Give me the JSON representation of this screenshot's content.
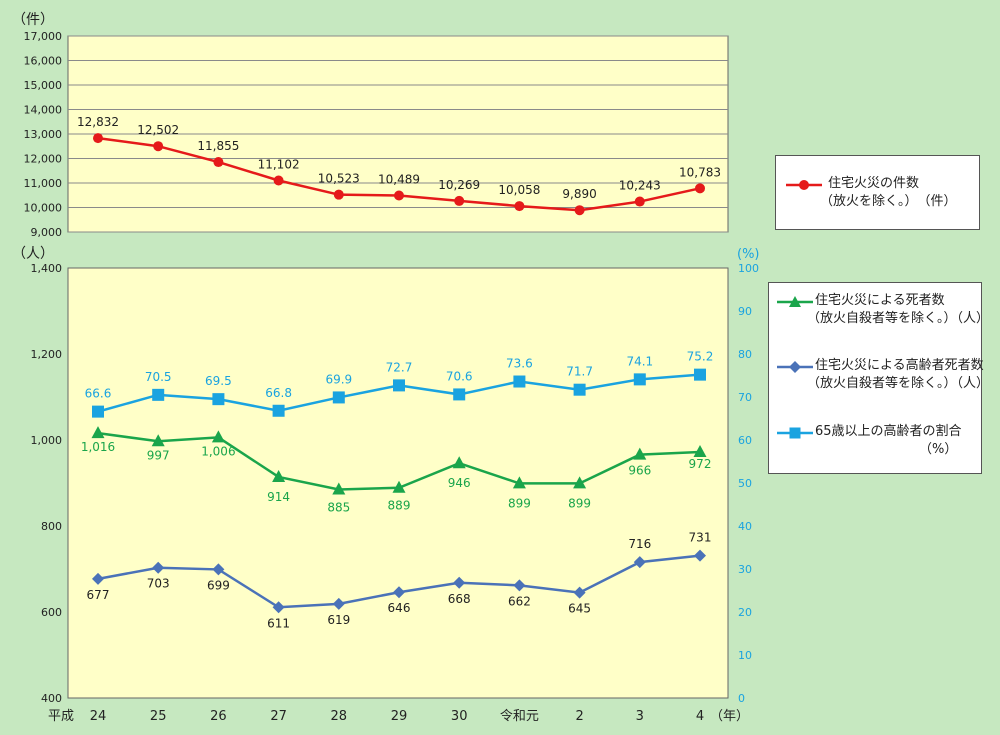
{
  "chart_data": [
    {
      "type": "line",
      "y_unit": "（件）",
      "ylim": [
        9000,
        17000
      ],
      "yticks": [
        "9,000",
        "10,000",
        "11,000",
        "12,000",
        "13,000",
        "14,000",
        "15,000",
        "16,000",
        "17,000"
      ],
      "categories": [
        "平成 24",
        "25",
        "26",
        "27",
        "28",
        "29",
        "30",
        "令和元",
        "2",
        "3",
        "4"
      ],
      "series": [
        {
          "name": "住宅火災の件数（放火を除く。）（件）",
          "legend_lines": [
            "住宅火災の件数",
            "（放火を除く。）　（件）"
          ],
          "color": "#e51a1a",
          "marker": "circle",
          "values": [
            12832,
            12502,
            11855,
            11102,
            10523,
            10489,
            10269,
            10058,
            9890,
            10243,
            10783
          ],
          "labels": [
            "12,832",
            "12,502",
            "11,855",
            "11,102",
            "10,523",
            "10,489",
            "10,269",
            "10,058",
            "9,890",
            "10,243",
            "10,783"
          ]
        }
      ]
    },
    {
      "type": "line",
      "y_unit_left": "（人）",
      "y_unit_right": "(%)",
      "ylim_left": [
        400,
        1400
      ],
      "ylim_right": [
        0,
        100
      ],
      "yticks_left": [
        "400",
        "600",
        "800",
        "1,000",
        "1,200",
        "1,400"
      ],
      "yticks_right": [
        "0",
        "10",
        "20",
        "30",
        "40",
        "50",
        "60",
        "70",
        "80",
        "90",
        "100"
      ],
      "x_era_label": "平成",
      "x_unit": "（年）",
      "categories": [
        "24",
        "25",
        "26",
        "27",
        "28",
        "29",
        "30",
        "令和元",
        "2",
        "3",
        "4"
      ],
      "series": [
        {
          "name": "住宅火災による死者数（放火自殺者等を除く。）（人）",
          "legend_lines": [
            "住宅火災による死者数",
            "（放火自殺者等を除く。）（人）"
          ],
          "color": "#1aa54b",
          "marker": "triangle",
          "axis": "left",
          "values": [
            1016,
            997,
            1006,
            914,
            885,
            889,
            946,
            899,
            899,
            966,
            972
          ],
          "labels": [
            "1,016",
            "997",
            "1,006",
            "914",
            "885",
            "889",
            "946",
            "899",
            "899",
            "966",
            "972"
          ]
        },
        {
          "name": "住宅火災による高齢者死者数（放火自殺者等を除く。）（人）",
          "legend_lines": [
            "住宅火災による高齢者死者数",
            "（放火自殺者等を除く。）（人）"
          ],
          "color": "#4a72b8",
          "marker": "diamond",
          "axis": "left",
          "values": [
            677,
            703,
            699,
            611,
            619,
            646,
            668,
            662,
            645,
            716,
            731
          ],
          "labels": [
            "677",
            "703",
            "699",
            "611",
            "619",
            "646",
            "668",
            "662",
            "645",
            "716",
            "731"
          ]
        },
        {
          "name": "65歳以上の高齢者の割合（%）",
          "legend_lines": [
            "65歳以上の高齢者の割合",
            "（%）"
          ],
          "color": "#1aa3e0",
          "marker": "square",
          "axis": "right",
          "values": [
            66.6,
            70.5,
            69.5,
            66.8,
            69.9,
            72.7,
            70.6,
            73.6,
            71.7,
            74.1,
            75.2
          ],
          "labels": [
            "66.6",
            "70.5",
            "69.5",
            "66.8",
            "69.9",
            "72.7",
            "70.6",
            "73.6",
            "71.7",
            "74.1",
            "75.2"
          ]
        }
      ]
    }
  ]
}
